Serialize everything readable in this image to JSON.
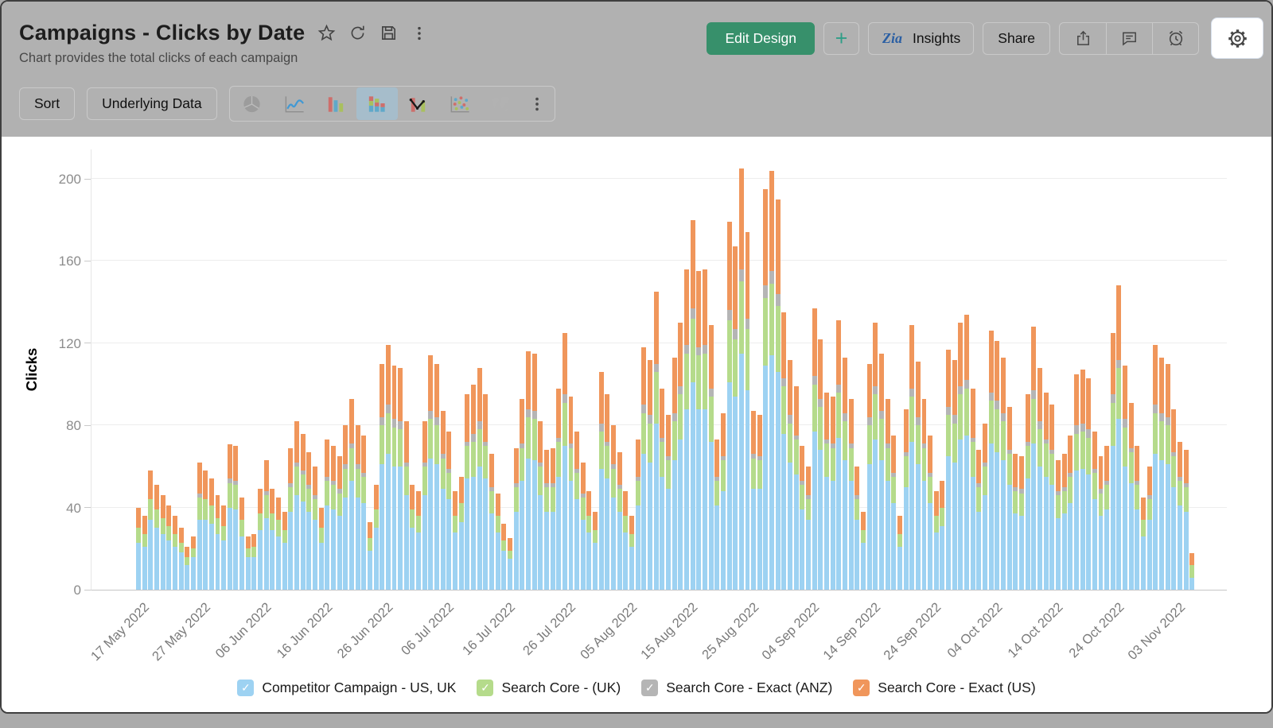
{
  "header": {
    "title": "Campaigns - Clicks by Date",
    "subtitle": "Chart provides the total clicks of each campaign",
    "actions": {
      "edit_design_label": "Edit Design",
      "plus_label": "+",
      "insights_label": "Insights",
      "insights_icon_text": "Zia",
      "share_label": "Share"
    }
  },
  "toolbar": {
    "sort_label": "Sort",
    "underlying_data_label": "Underlying Data",
    "selected_chart_type": "stacked-bar",
    "chart_types": [
      "pie",
      "line",
      "bar",
      "stacked-bar",
      "bar-line-combo",
      "scatter",
      "map"
    ]
  },
  "colors": {
    "header_bg": "#B1B1B1",
    "edit_design_green": "#37906B",
    "zia_blue": "#2B5FA3",
    "selected_chart_tile": "#A6BDCB"
  },
  "chart_data": {
    "type": "bar",
    "stacked": true,
    "title": "",
    "xlabel": "",
    "ylabel": "Clicks",
    "y_ticks": [
      0,
      40,
      80,
      120,
      160,
      200
    ],
    "ylim": [
      0,
      215
    ],
    "grid": true,
    "legend_position": "bottom",
    "legend_check_glyph": "✓",
    "n_bars": 174,
    "x_start": "17 May 2022",
    "x_end": "06 Nov 2022",
    "x_tick_interval": 10,
    "x_tick_labels": [
      "17 May 2022",
      "27 May 2022",
      "06 Jun 2022",
      "16 Jun 2022",
      "26 Jun 2022",
      "06 Jul 2022",
      "16 Jul 2022",
      "26 Jul 2022",
      "05 Aug 2022",
      "15 Aug 2022",
      "25 Aug 2022",
      "04 Sep 2022",
      "14 Sep 2022",
      "24 Sep 2022",
      "04 Oct 2022",
      "14 Oct 2022",
      "24 Oct 2022",
      "03 Nov 2022"
    ],
    "series": [
      {
        "name": "Competitor Campaign - US, UK",
        "color": "#9DD2F2",
        "values": [
          23,
          21,
          34,
          30,
          27,
          24,
          21,
          18,
          12,
          16,
          34,
          34,
          32,
          27,
          24,
          40,
          39,
          26,
          16,
          16,
          29,
          35,
          29,
          26,
          23,
          38,
          46,
          43,
          38,
          34,
          23,
          41,
          39,
          36,
          45,
          53,
          45,
          42,
          19,
          30,
          61,
          66,
          60,
          60,
          46,
          30,
          28,
          46,
          64,
          61,
          49,
          44,
          28,
          33,
          54,
          55,
          60,
          54,
          37,
          28,
          19,
          15,
          38,
          53,
          64,
          63,
          46,
          38,
          38,
          55,
          70,
          53,
          44,
          34,
          28,
          23,
          59,
          54,
          45,
          38,
          28,
          21,
          41,
          66,
          62,
          81,
          55,
          49,
          63,
          73,
          88,
          101,
          88,
          88,
          72,
          41,
          48,
          101,
          94,
          115,
          97,
          49,
          49,
          109,
          114,
          106,
          76,
          62,
          56,
          39,
          34,
          77,
          68,
          55,
          53,
          74,
          63,
          53,
          34,
          23,
          61,
          73,
          63,
          53,
          42,
          21,
          50,
          72,
          61,
          53,
          42,
          28,
          31,
          65,
          62,
          73,
          75,
          55,
          38,
          46,
          71,
          67,
          63,
          51,
          37,
          36,
          54,
          71,
          60,
          55,
          51,
          35,
          37,
          42,
          58,
          59,
          56,
          44,
          36,
          39,
          70,
          83,
          60,
          52,
          39,
          26,
          34,
          66,
          63,
          61,
          50,
          41,
          38,
          6
        ]
      },
      {
        "name": "Search Core - (UK)",
        "color": "#B5DB8B",
        "values": [
          7,
          6,
          10,
          9,
          8,
          7,
          6,
          5,
          4,
          4,
          11,
          10,
          9,
          8,
          7,
          12,
          12,
          8,
          4,
          5,
          8,
          11,
          8,
          8,
          6,
          12,
          14,
          13,
          11,
          10,
          7,
          12,
          12,
          11,
          14,
          16,
          14,
          13,
          6,
          9,
          19,
          20,
          19,
          18,
          14,
          9,
          8,
          14,
          19,
          19,
          15,
          13,
          8,
          9,
          16,
          17,
          18,
          16,
          11,
          8,
          5,
          4,
          12,
          16,
          20,
          20,
          14,
          12,
          12,
          17,
          21,
          16,
          13,
          11,
          8,
          6,
          18,
          16,
          14,
          11,
          8,
          6,
          12,
          20,
          19,
          25,
          17,
          14,
          19,
          22,
          27,
          31,
          26,
          27,
          22,
          12,
          15,
          30,
          28,
          35,
          30,
          15,
          14,
          33,
          35,
          32,
          23,
          19,
          17,
          12,
          10,
          23,
          21,
          16,
          16,
          22,
          19,
          16,
          10,
          6,
          19,
          22,
          20,
          16,
          13,
          6,
          15,
          22,
          19,
          16,
          13,
          8,
          9,
          20,
          19,
          22,
          23,
          17,
          12,
          14,
          21,
          21,
          19,
          15,
          11,
          11,
          16,
          22,
          18,
          16,
          15,
          11,
          11,
          13,
          18,
          18,
          18,
          13,
          11,
          12,
          21,
          25,
          19,
          15,
          12,
          8,
          10,
          20,
          19,
          19,
          15,
          12,
          12,
          6
        ]
      },
      {
        "name": "Search Core - Exact (ANZ)",
        "color": "#B5B5B5",
        "values": [
          0,
          0,
          0,
          0,
          0,
          0,
          0,
          0,
          0,
          0,
          2,
          0,
          0,
          0,
          0,
          2,
          2,
          0,
          0,
          0,
          0,
          2,
          0,
          0,
          0,
          2,
          2,
          2,
          2,
          2,
          0,
          2,
          2,
          2,
          2,
          2,
          2,
          2,
          0,
          0,
          4,
          4,
          4,
          4,
          2,
          0,
          0,
          2,
          4,
          4,
          2,
          2,
          0,
          0,
          2,
          4,
          4,
          2,
          2,
          0,
          0,
          0,
          2,
          2,
          4,
          4,
          2,
          2,
          2,
          2,
          4,
          2,
          2,
          2,
          0,
          0,
          4,
          2,
          2,
          2,
          0,
          0,
          2,
          4,
          4,
          4,
          2,
          2,
          4,
          4,
          4,
          5,
          4,
          4,
          4,
          2,
          2,
          5,
          5,
          6,
          5,
          2,
          2,
          6,
          6,
          6,
          4,
          4,
          2,
          2,
          2,
          4,
          4,
          2,
          2,
          4,
          4,
          2,
          2,
          0,
          4,
          4,
          4,
          2,
          2,
          0,
          2,
          4,
          4,
          2,
          2,
          0,
          0,
          4,
          4,
          4,
          4,
          2,
          2,
          2,
          4,
          4,
          4,
          2,
          2,
          2,
          2,
          4,
          4,
          2,
          2,
          2,
          2,
          2,
          4,
          4,
          4,
          2,
          2,
          2,
          4,
          4,
          4,
          2,
          2,
          0,
          2,
          4,
          4,
          4,
          2,
          2,
          2,
          0
        ]
      },
      {
        "name": "Search Core - Exact (US)",
        "color": "#F0965B",
        "values": [
          10,
          9,
          14,
          12,
          11,
          10,
          9,
          7,
          5,
          6,
          15,
          14,
          13,
          11,
          10,
          17,
          17,
          11,
          6,
          6,
          12,
          15,
          12,
          11,
          9,
          17,
          20,
          18,
          16,
          14,
          10,
          18,
          17,
          16,
          19,
          22,
          19,
          18,
          8,
          12,
          26,
          29,
          26,
          26,
          20,
          12,
          12,
          20,
          27,
          26,
          21,
          18,
          12,
          13,
          23,
          24,
          26,
          23,
          16,
          11,
          8,
          6,
          17,
          22,
          28,
          28,
          20,
          16,
          17,
          24,
          30,
          23,
          18,
          15,
          12,
          9,
          25,
          23,
          19,
          16,
          12,
          9,
          18,
          28,
          27,
          35,
          24,
          20,
          27,
          31,
          37,
          43,
          37,
          37,
          31,
          18,
          21,
          43,
          40,
          49,
          42,
          21,
          20,
          47,
          49,
          46,
          32,
          27,
          24,
          17,
          14,
          33,
          29,
          23,
          23,
          31,
          27,
          22,
          14,
          9,
          26,
          31,
          28,
          22,
          18,
          9,
          21,
          31,
          27,
          22,
          18,
          12,
          13,
          28,
          27,
          31,
          32,
          24,
          16,
          19,
          30,
          29,
          27,
          21,
          16,
          16,
          23,
          31,
          26,
          23,
          22,
          15,
          16,
          18,
          25,
          26,
          25,
          18,
          16,
          17,
          30,
          36,
          26,
          22,
          17,
          11,
          14,
          29,
          27,
          26,
          21,
          17,
          16,
          6
        ]
      }
    ]
  }
}
